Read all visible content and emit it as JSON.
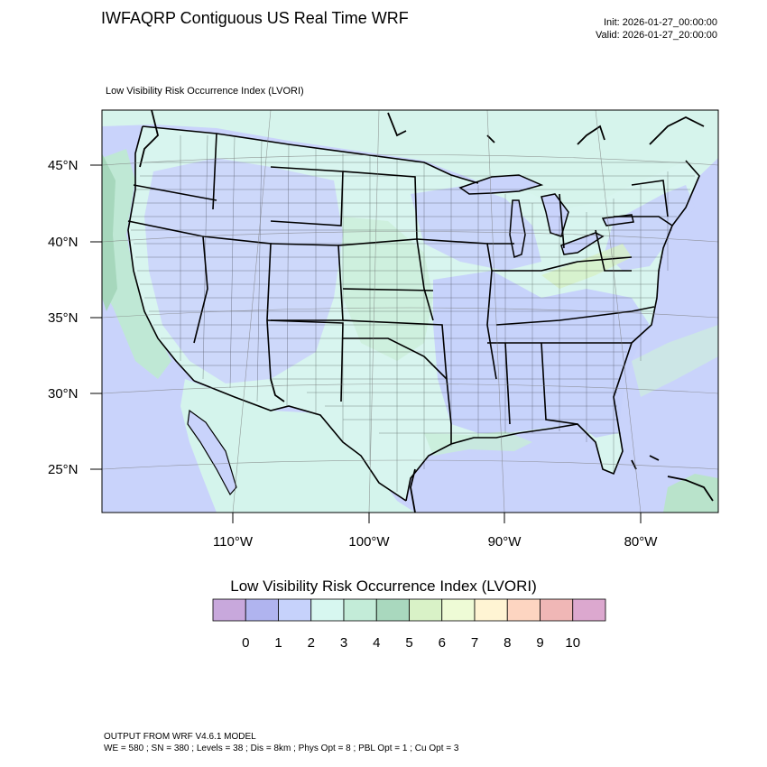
{
  "header": {
    "title": "IWFAQRP Contiguous US Real Time WRF",
    "init": "Init: 2026-01-27_00:00:00",
    "valid": "Valid: 2026-01-27_20:00:00"
  },
  "map": {
    "subtitle": "Low Visibility Risk Occurrence Index   (LVORI)",
    "lat_labels": [
      "45°N",
      "40°N",
      "35°N",
      "30°N",
      "25°N"
    ],
    "lon_labels": [
      "110°W",
      "100°W",
      "90°W",
      "80°W"
    ],
    "colors": {
      "background": "#c9d3fb",
      "land_light": "#dcfaf4",
      "land_mid": "#c4ecd9",
      "land_dark": "#a9d8be",
      "green_light": "#d9f2c9",
      "border": "#000000"
    }
  },
  "colorbar": {
    "title": "Low Visibility Risk Occurrence Index  (LVORI)",
    "colors": [
      "#c8a8dc",
      "#b0b4ef",
      "#c6d2fb",
      "#d7f7f0",
      "#c3ecd8",
      "#a9d8be",
      "#d9f2c7",
      "#eefbd6",
      "#fff4d3",
      "#fdd5c1",
      "#f0b7b6",
      "#dca8cf"
    ],
    "labels": [
      "0",
      "1",
      "2",
      "3",
      "4",
      "5",
      "6",
      "7",
      "8",
      "9",
      "10"
    ]
  },
  "footer": {
    "line1": "OUTPUT FROM WRF V4.6.1 MODEL",
    "line2": "WE = 580 ; SN = 380 ; Levels = 38 ; Dis = 8km ; Phys Opt = 8 ; PBL Opt = 1 ; Cu Opt = 3"
  }
}
